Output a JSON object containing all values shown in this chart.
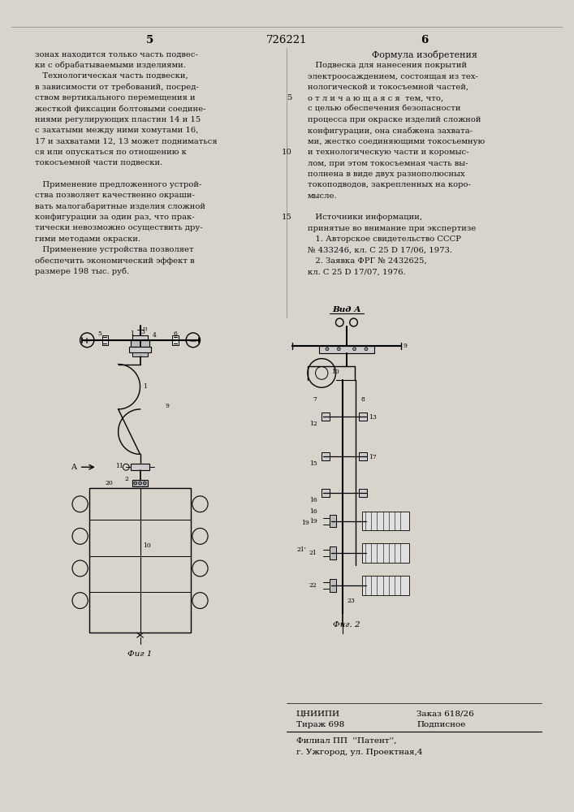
{
  "bg_color": "#d8d4cc",
  "page_color": "#f0ede6",
  "title_patent": "726221",
  "left_col_number": "5",
  "right_col_number": "6",
  "left_text": [
    [
      "зонах находится только часть подвес-",
      false
    ],
    [
      "ки с обрабатываемыми изделиями.",
      false
    ],
    [
      "   Технологическая часть подвески,",
      false
    ],
    [
      "в зависимости от требований, посред-",
      false
    ],
    [
      "ством вертикального перемещения и",
      false
    ],
    [
      "жесткой фиксации болтовыми соедине-",
      false
    ],
    [
      "ниями регулирующих пластин 14 и 15",
      false
    ],
    [
      "с захатыми между ними хомутами 16,",
      false
    ],
    [
      "17 и захватами 12, 13 может подниматься",
      false
    ],
    [
      "ся или опускаться по отношению к",
      false
    ],
    [
      "токосъемной части подвески.",
      false
    ],
    [
      "",
      false
    ],
    [
      "   Применение предложенного устрой-",
      false
    ],
    [
      "ства позволяет качественно окраши-",
      false
    ],
    [
      "вать малогабаритные изделия сложной",
      false
    ],
    [
      "конфигурации за один раз, что прак-",
      false
    ],
    [
      "тически невозможно осуществить дру-",
      false
    ],
    [
      "гими методами окраски.",
      false
    ],
    [
      "   Применение устройства позволяет",
      false
    ],
    [
      "обеспечить экономический эффект в",
      false
    ],
    [
      "размере 198 тыс. руб.",
      false
    ]
  ],
  "right_col_header": "Формула изобретения",
  "right_text": [
    [
      "   Подвеска для нанесения покрытий",
      "",
      false
    ],
    [
      "электроосаждением, состоящая из тех-",
      "",
      false
    ],
    [
      "нологической и токосъемной частей,",
      "",
      false
    ],
    [
      "о т л и ч а ю щ а я с я  тем, что,",
      "5",
      false
    ],
    [
      "с целью обеспечения безопасности",
      "",
      false
    ],
    [
      "процесса при окраске изделий сложной",
      "",
      false
    ],
    [
      "конфигурации, она снабжена захвата-",
      "",
      false
    ],
    [
      "ми, жестко соединяющими токосъемную",
      "",
      false
    ],
    [
      "и технологическую части и коромыс-",
      "10",
      false
    ],
    [
      "лом, при этом токосъемная часть вы-",
      "",
      false
    ],
    [
      "полнена в виде двух разнополюсных",
      "",
      false
    ],
    [
      "токоподводов, закрепленных на коро-",
      "",
      false
    ],
    [
      "мысле.",
      "",
      false
    ],
    [
      "",
      "",
      false
    ],
    [
      "   Источники информации,",
      "15",
      false
    ],
    [
      "принятые во внимание при экспертизе",
      "",
      false
    ],
    [
      "   1. Авторское свидетельство СССР",
      "",
      false
    ],
    [
      "№ 433246, кл. С 25 D 17/06, 1973.",
      "",
      false
    ],
    [
      "   2. Заявка ФРГ № 2432625,",
      "",
      false
    ],
    [
      "кл. С 25 D 17/07, 1976.",
      "",
      false
    ]
  ],
  "fig1_caption": "Фиг 1",
  "fig2_caption": "Фиг. 2",
  "view_label": "Вид А",
  "bottom_label1": "ЦНИИПИ",
  "bottom_label2": "Заказ 618/26",
  "bottom_label3": "Тираж 698",
  "bottom_label4": "Подписное",
  "bottom_line1": "Филиал ПП  ''Патент'',",
  "bottom_line2": "г. Ужгород, ул. Проектная,4",
  "font_body": 7.2,
  "font_header": 8.0,
  "font_patent": 9.5
}
